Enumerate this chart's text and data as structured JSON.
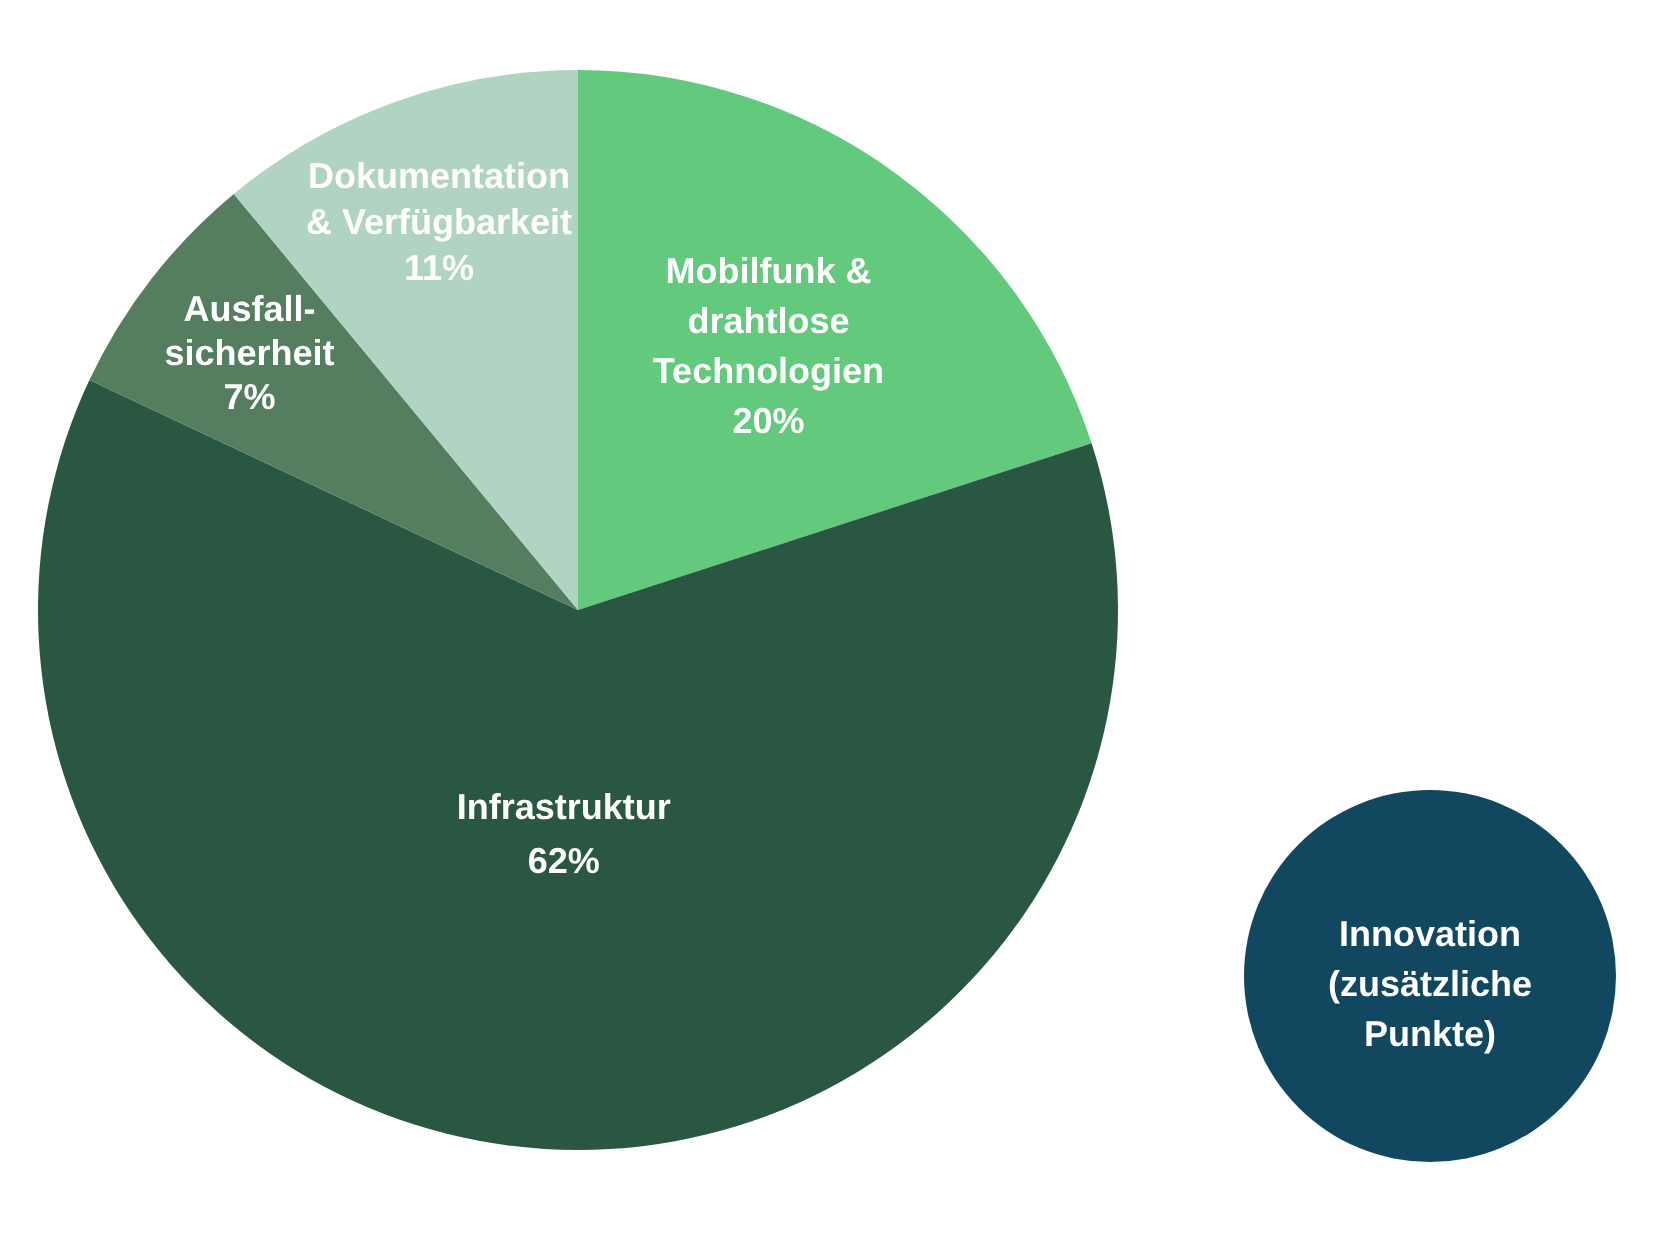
{
  "chart_data": {
    "type": "pie",
    "categories": [
      "Mobilfunk & drahtlose Technologien",
      "Infrastruktur",
      "Ausfall-sicherheit",
      "Dokumentation & Verfügbarkeit"
    ],
    "values": [
      20,
      62,
      7,
      11
    ],
    "colors": [
      "#63c97d",
      "#2a5741",
      "#547e5f",
      "#b1d3c1"
    ],
    "value_labels": [
      "20%",
      "62%",
      "7%",
      "11%"
    ],
    "annotations": [
      "Innovation (zusätzliche Punkte)"
    ]
  }
}
